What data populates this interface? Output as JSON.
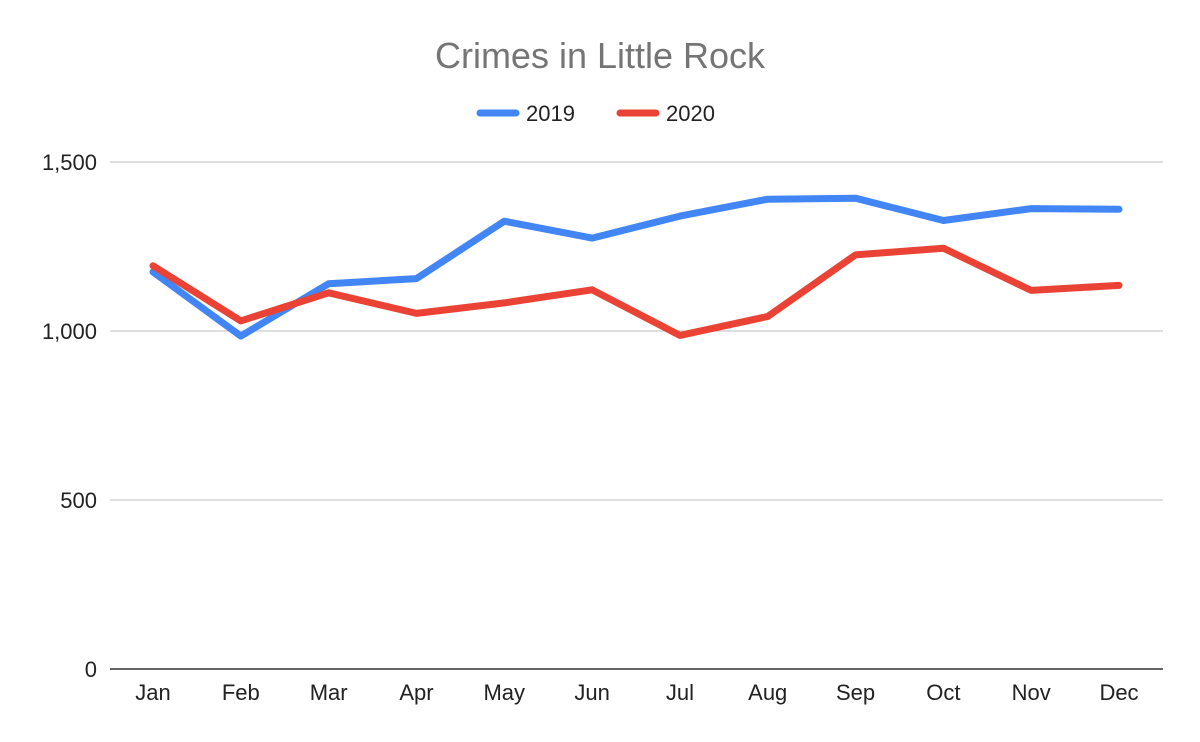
{
  "chart_data": {
    "type": "line",
    "title": "Crimes in Little Rock",
    "xlabel": "",
    "ylabel": "",
    "categories": [
      "Jan",
      "Feb",
      "Mar",
      "Apr",
      "May",
      "Jun",
      "Jul",
      "Aug",
      "Sep",
      "Oct",
      "Nov",
      "Dec"
    ],
    "series": [
      {
        "name": "2019",
        "color": "#4285f4",
        "values": [
          1175,
          985,
          1140,
          1155,
          1325,
          1275,
          1340,
          1390,
          1393,
          1327,
          1362,
          1360
        ]
      },
      {
        "name": "2020",
        "color": "#ea4335",
        "values": [
          1193,
          1030,
          1113,
          1052,
          1083,
          1122,
          987,
          1043,
          1225,
          1245,
          1120,
          1135
        ]
      }
    ],
    "ylim": [
      0,
      1500
    ],
    "yticks": [
      0,
      500,
      1000,
      1500
    ],
    "ytick_labels": [
      "0",
      "500",
      "1,000",
      "1,500"
    ],
    "grid": true,
    "legend": "top-center"
  }
}
